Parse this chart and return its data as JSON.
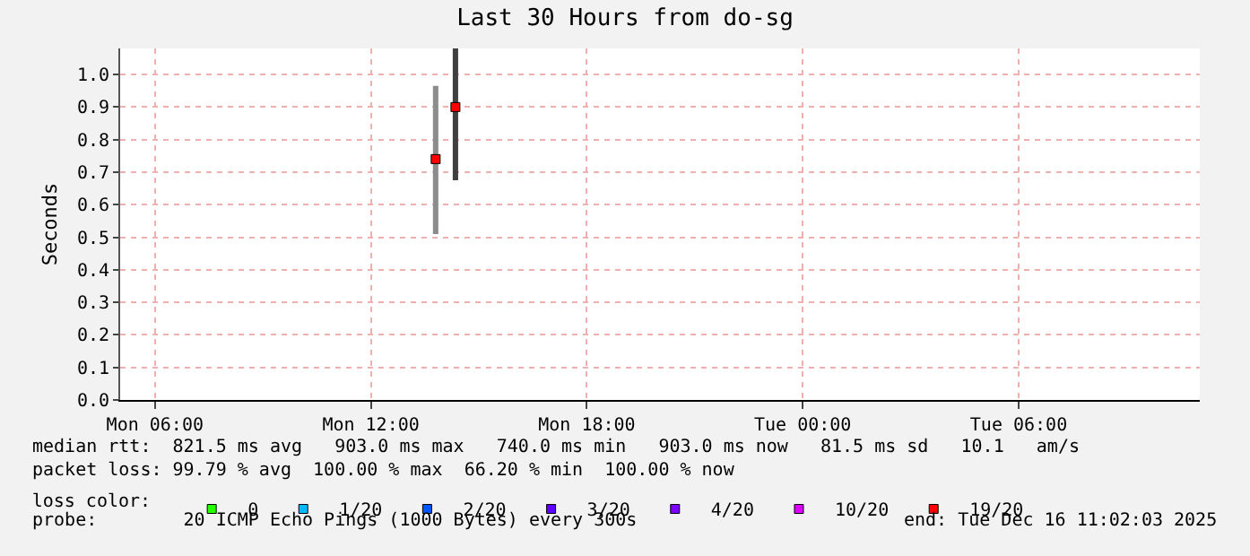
{
  "chart_data": {
    "type": "bar",
    "title": "Last 30 Hours from do-sg",
    "ylabel": "Seconds",
    "legend_title": "loss color:",
    "x": [
      "2025-12-15T13:48",
      "2025-12-15T14:21"
    ],
    "series": [
      {
        "colors": [
          "#8c8c8c",
          "#404040"
        ],
        "base": [
          0.51,
          0.675
        ],
        "values": [
          0.455,
          0.405
        ]
      },
      {
        "type": "scatter",
        "name": "0",
        "color": "#26ff00",
        "values": [
          null,
          null
        ]
      },
      {
        "type": "scatter",
        "name": "1/20",
        "color": "#00b8ff",
        "values": [
          null,
          null
        ]
      },
      {
        "type": "scatter",
        "name": "2/20",
        "color": "#0059ff",
        "values": [
          null,
          null
        ]
      },
      {
        "type": "scatter",
        "name": "3/20",
        "color": "#5e00ff",
        "values": [
          null,
          null
        ]
      },
      {
        "type": "scatter",
        "name": "4/20",
        "color": "#7e00ff",
        "values": [
          null,
          null
        ]
      },
      {
        "type": "scatter",
        "name": "10/20",
        "color": "#dd00ff",
        "values": [
          null,
          null
        ]
      },
      {
        "type": "scatter",
        "name": "19/20",
        "color": "#ff0000",
        "values": [
          0.74,
          0.9
        ]
      }
    ],
    "xlim": [
      "2025-12-15T05:02",
      "2025-12-16T11:02"
    ],
    "xticks": [
      {
        "value": "2025-12-15T06:00",
        "label": "Mon 06:00"
      },
      {
        "value": "2025-12-15T12:00",
        "label": "Mon 12:00"
      },
      {
        "value": "2025-12-15T18:00",
        "label": "Mon 18:00"
      },
      {
        "value": "2025-12-16T00:00",
        "label": "Tue 00:00"
      },
      {
        "value": "2025-12-16T06:00",
        "label": "Tue 06:00"
      }
    ],
    "ylim": [
      0,
      1.08
    ],
    "yticks": [
      {
        "value": 0,
        "label": "0.0"
      },
      0.1,
      0.2,
      0.3,
      0.4,
      0.5,
      0.6,
      0.7,
      0.8,
      0.9,
      {
        "value": 1,
        "label": "1.0"
      }
    ],
    "grid": true,
    "legend": "bottom",
    "marker": "square",
    "annotations": [
      "median rtt:  821.5 ms avg   903.0 ms max   740.0 ms min   903.0 ms now   81.5 ms sd   10.1   am/s",
      "packet loss: 99.79 % avg  100.00 % max  66.20 % min  100.00 % now",
      "probe:        20 ICMP Echo Pings (1000 Bytes) every 300s",
      "end: Tue Dec 16 11:02:03 2025"
    ]
  }
}
